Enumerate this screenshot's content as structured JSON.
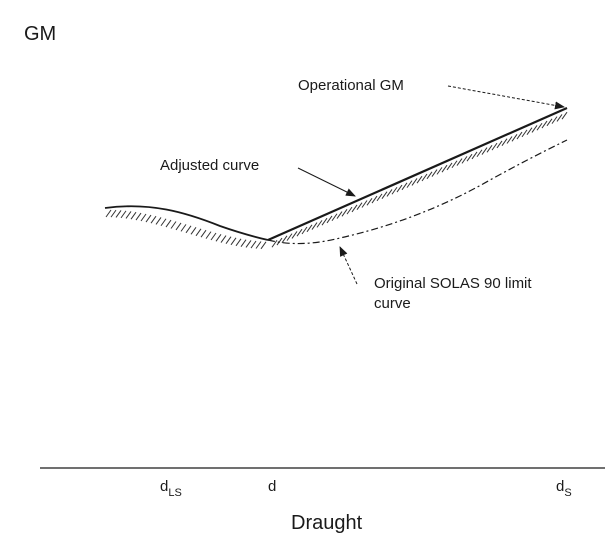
{
  "diagram": {
    "y_axis_label": "GM",
    "x_axis_label": "Draught",
    "annotations": {
      "operational_gm": "Operational GM",
      "adjusted_curve": "Adjusted curve",
      "original_limit_line1": "Original SOLAS 90 limit",
      "original_limit_line2": "curve"
    },
    "ticks": {
      "d_ls_main": "d",
      "d_ls_sub": "LS",
      "d_main": "d",
      "d_s_main": "d",
      "d_s_sub": "S"
    }
  }
}
